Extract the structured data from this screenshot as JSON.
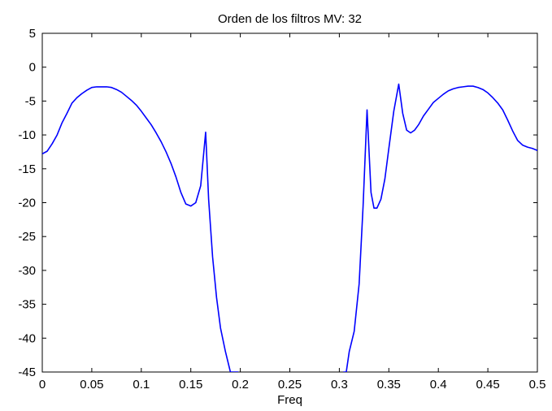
{
  "chart_data": {
    "type": "line",
    "title": "Orden de los filtros MV:  32",
    "xlabel": "Freq",
    "ylabel": "",
    "xlim": [
      0,
      0.5
    ],
    "ylim": [
      -45,
      5
    ],
    "x_ticks": [
      "0",
      "0.05",
      "0.1",
      "0.15",
      "0.2",
      "0.25",
      "0.3",
      "0.35",
      "0.4",
      "0.45",
      "0.5"
    ],
    "y_ticks": [
      "5",
      "0",
      "-5",
      "-10",
      "-15",
      "-20",
      "-25",
      "-30",
      "-35",
      "-40",
      "-45"
    ],
    "grid": false,
    "line_color": "#0000ff",
    "series": [
      {
        "x": [
          0,
          0.005,
          0.01,
          0.015,
          0.02,
          0.025,
          0.03,
          0.035,
          0.04,
          0.045,
          0.05,
          0.055,
          0.06,
          0.065,
          0.07,
          0.075,
          0.08,
          0.085,
          0.09,
          0.095,
          0.1,
          0.105,
          0.11,
          0.115,
          0.12,
          0.125,
          0.13,
          0.135,
          0.14,
          0.145,
          0.15,
          0.155,
          0.16,
          0.165,
          0.168,
          0.172,
          0.176,
          0.18,
          0.185,
          0.19,
          0.195,
          0.198
        ],
        "values": [
          -12.8,
          -12.4,
          -11.3,
          -10.0,
          -8.2,
          -6.8,
          -5.3,
          -4.5,
          -3.9,
          -3.4,
          -3.0,
          -2.9,
          -2.9,
          -2.9,
          -3.0,
          -3.3,
          -3.7,
          -4.3,
          -4.9,
          -5.6,
          -6.5,
          -7.5,
          -8.5,
          -9.7,
          -11.0,
          -12.5,
          -14.2,
          -16.2,
          -18.5,
          -20.2,
          -20.5,
          -20.0,
          -17.5,
          -9.6,
          -19.5,
          -28.0,
          -34.0,
          -38.5,
          -42.0,
          -45.0,
          -45.0,
          -45.0
        ]
      },
      {
        "x": [
          0.304,
          0.307,
          0.31,
          0.315,
          0.32,
          0.324,
          0.328,
          0.332,
          0.335,
          0.338,
          0.342,
          0.346,
          0.35,
          0.355,
          0.36,
          0.364,
          0.368,
          0.372,
          0.376,
          0.38,
          0.385,
          0.39,
          0.395,
          0.4,
          0.405,
          0.41,
          0.415,
          0.42,
          0.425,
          0.43,
          0.435,
          0.44,
          0.445,
          0.45,
          0.455,
          0.46,
          0.465,
          0.47,
          0.475,
          0.48,
          0.485,
          0.49,
          0.495,
          0.5
        ],
        "values": [
          -45.0,
          -45.0,
          -42.0,
          -39.0,
          -32.0,
          -20.5,
          -6.3,
          -18.5,
          -20.8,
          -20.8,
          -19.5,
          -16.5,
          -12.0,
          -6.5,
          -2.5,
          -6.8,
          -9.3,
          -9.7,
          -9.3,
          -8.5,
          -7.2,
          -6.2,
          -5.2,
          -4.6,
          -4.0,
          -3.5,
          -3.2,
          -3.0,
          -2.9,
          -2.8,
          -2.8,
          -3.0,
          -3.3,
          -3.8,
          -4.5,
          -5.3,
          -6.3,
          -7.8,
          -9.4,
          -10.8,
          -11.5,
          -11.8,
          -12.0,
          -12.3
        ]
      }
    ]
  }
}
